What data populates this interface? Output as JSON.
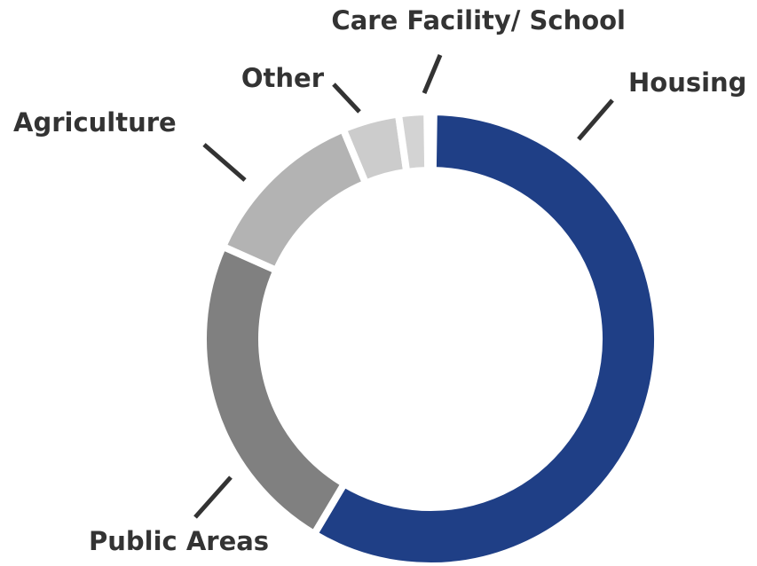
{
  "chart_data": {
    "type": "donut",
    "categories": [
      "Housing",
      "Public Areas",
      "Agriculture",
      "Other",
      "Care Facility/ School"
    ],
    "values": [
      58,
      23,
      12,
      4,
      2
    ],
    "colors": [
      "#1f3f86",
      "#808080",
      "#b3b3b3",
      "#cccccc",
      "#d3d3d3"
    ]
  }
}
